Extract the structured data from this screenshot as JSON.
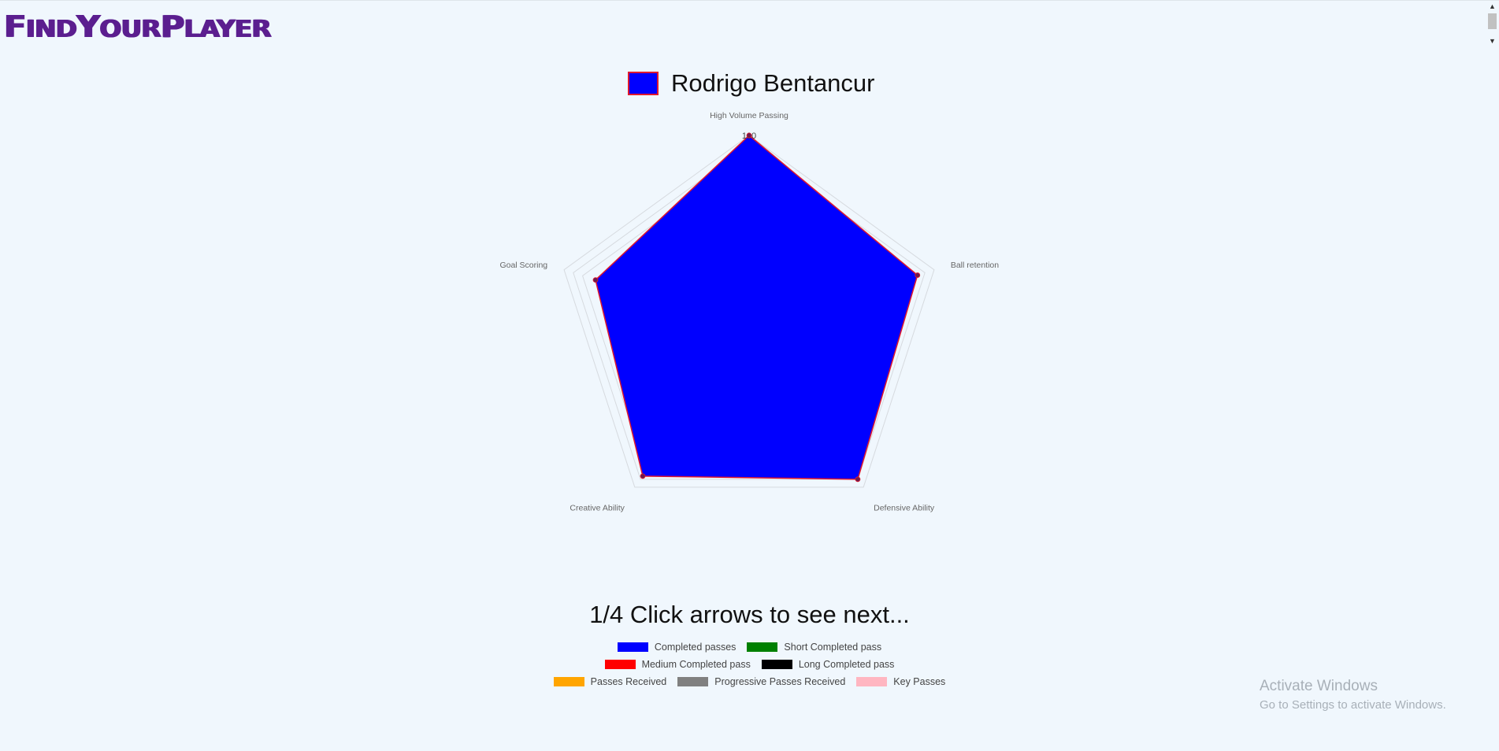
{
  "app": {
    "logo_find": "F",
    "logo_ind": "IND",
    "logo_y": "Y",
    "logo_our": "OUR",
    "logo_p": "P",
    "logo_layer": "LAYER"
  },
  "chart_data": {
    "type": "radar",
    "dataset_label": "Rodrigo Bentancur",
    "axes": [
      "High Volume Passing",
      "Ball retention",
      "Defensive Ability",
      "Creative Ability",
      "Goal Scoring"
    ],
    "values": [
      100,
      91,
      95,
      93,
      83
    ],
    "r_max": 100,
    "tick_label": "100",
    "fill_color": "#0000ff",
    "border_color": "#e0182e",
    "point_color": "#6a1b4d"
  },
  "pager": {
    "text": "1/4 Click arrows to see next..."
  },
  "legend": {
    "rows": [
      [
        {
          "label": "Completed passes",
          "color": "#0000ff"
        },
        {
          "label": "Short Completed pass",
          "color": "#008000"
        }
      ],
      [
        {
          "label": "Medium Completed pass",
          "color": "#ff0000"
        },
        {
          "label": "Long Completed pass",
          "color": "#000000"
        }
      ],
      [
        {
          "label": "Passes Received",
          "color": "#ffa500"
        },
        {
          "label": "Progressive Passes Received",
          "color": "#808080"
        },
        {
          "label": "Key Passes",
          "color": "#ffb6c1"
        }
      ]
    ]
  },
  "watermark": {
    "title": "Activate Windows",
    "subtitle": "Go to Settings to activate Windows."
  },
  "scrollbar": {
    "up_icon": "triangle-up",
    "down_icon": "triangle-down"
  }
}
